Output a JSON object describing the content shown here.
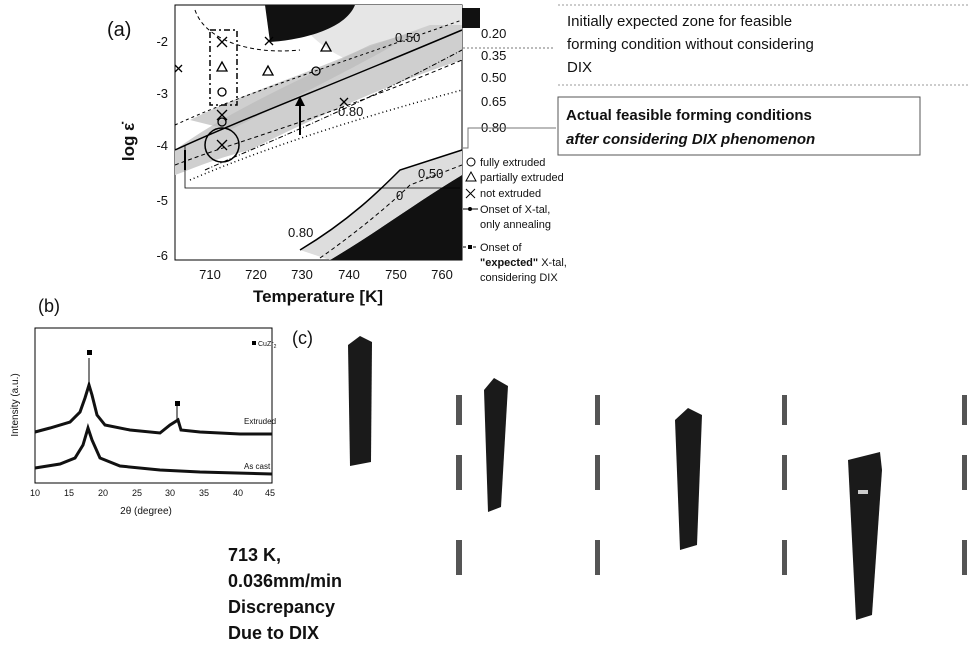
{
  "panel_a": {
    "label": "(a)",
    "x_label": "Temperature [K]",
    "y_label": "log ε̇",
    "x_ticks": [
      "710",
      "720",
      "730",
      "740",
      "750",
      "760"
    ],
    "y_ticks": [
      "-2",
      "-3",
      "-4",
      "-5",
      "-6"
    ],
    "contour_labels": [
      "0.50",
      "0.80",
      "0.50",
      "0",
      "0.80"
    ],
    "colorbar_labels": [
      "0.20",
      "0.35",
      "0.50",
      "0.65",
      "0.80"
    ],
    "legend": [
      "fully extruded",
      "partially extruded",
      "not extruded",
      "Onset of X-tal,",
      "only annealing",
      "Onset of",
      "\"expected\"",
      "X-tal,",
      "considering DIX"
    ]
  },
  "annotations": {
    "initial": [
      "Initially expected zone for feasible",
      "forming condition without considering",
      "DIX"
    ],
    "actual": [
      "Actual feasible forming conditions",
      "after considering DIX phenomenon"
    ]
  },
  "panel_b": {
    "label": "(b)",
    "x_label": "2θ (degree)",
    "y_label": "Intensity (a.u.)",
    "x_ticks": [
      "10",
      "15",
      "20",
      "25",
      "30",
      "35",
      "40",
      "45"
    ],
    "legend": "CuZr",
    "legend_sub": "2",
    "curve_labels": [
      "Extruded",
      "As cast"
    ]
  },
  "panel_c": {
    "label": "(c)"
  },
  "caption": [
    "713 K,",
    "0.036mm/min",
    "Discrepancy",
    "Due to DIX"
  ]
}
